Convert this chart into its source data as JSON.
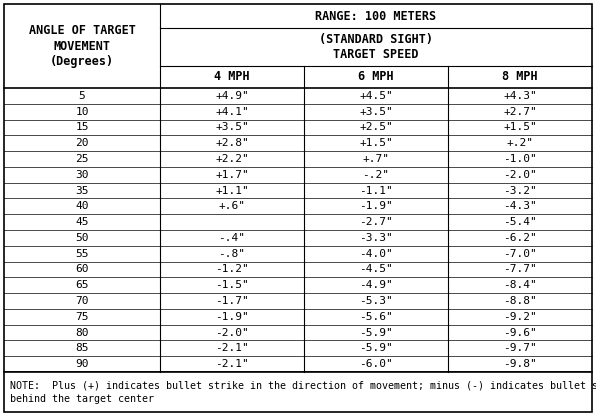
{
  "title_left": "ANGLE OF TARGET\nMOVEMENT\n(Degrees)",
  "title_right_line1": "RANGE: 100 METERS",
  "title_right_line2": "(STANDARD SIGHT)\nTARGET SPEED",
  "col_headers": [
    "4 MPH",
    "6 MPH",
    "8 MPH"
  ],
  "angles": [
    5,
    10,
    15,
    20,
    25,
    30,
    35,
    40,
    45,
    50,
    55,
    60,
    65,
    70,
    75,
    80,
    85,
    90
  ],
  "data_4mph": [
    "+4.9\"",
    "+4.1\"",
    "+3.5\"",
    "+2.8\"",
    "+2.2\"",
    "+1.7\"",
    "+1.1\"",
    "+.6\"",
    "",
    "-.4\"",
    "-.8\"",
    "-1.2\"",
    "-1.5\"",
    "-1.7\"",
    "-1.9\"",
    "-2.0\"",
    "-2.1\"",
    "-2.1\""
  ],
  "data_6mph": [
    "+4.5\"",
    "+3.5\"",
    "+2.5\"",
    "+1.5\"",
    "+.7\"",
    "-.2\"",
    "-1.1\"",
    "-1.9\"",
    "-2.7\"",
    "-3.3\"",
    "-4.0\"",
    "-4.5\"",
    "-4.9\"",
    "-5.3\"",
    "-5.6\"",
    "-5.9\"",
    "-5.9\"",
    "-6.0\""
  ],
  "data_8mph": [
    "+4.3\"",
    "+2.7\"",
    "+1.5\"",
    "+.2\"",
    "-1.0\"",
    "-2.0\"",
    "-3.2\"",
    "-4.3\"",
    "-5.4\"",
    "-6.2\"",
    "-7.0\"",
    "-7.7\"",
    "-8.4\"",
    "-8.8\"",
    "-9.2\"",
    "-9.6\"",
    "-9.7\"",
    "-9.8\""
  ],
  "note": "NOTE:  Plus (+) indicates bullet strike in the direction of movement; minus (-) indicates bullet strike\nbehind the target center",
  "bg_color": "#ffffff",
  "font_size_data": 8.0,
  "font_size_header": 8.5,
  "font_size_note": 7.2
}
